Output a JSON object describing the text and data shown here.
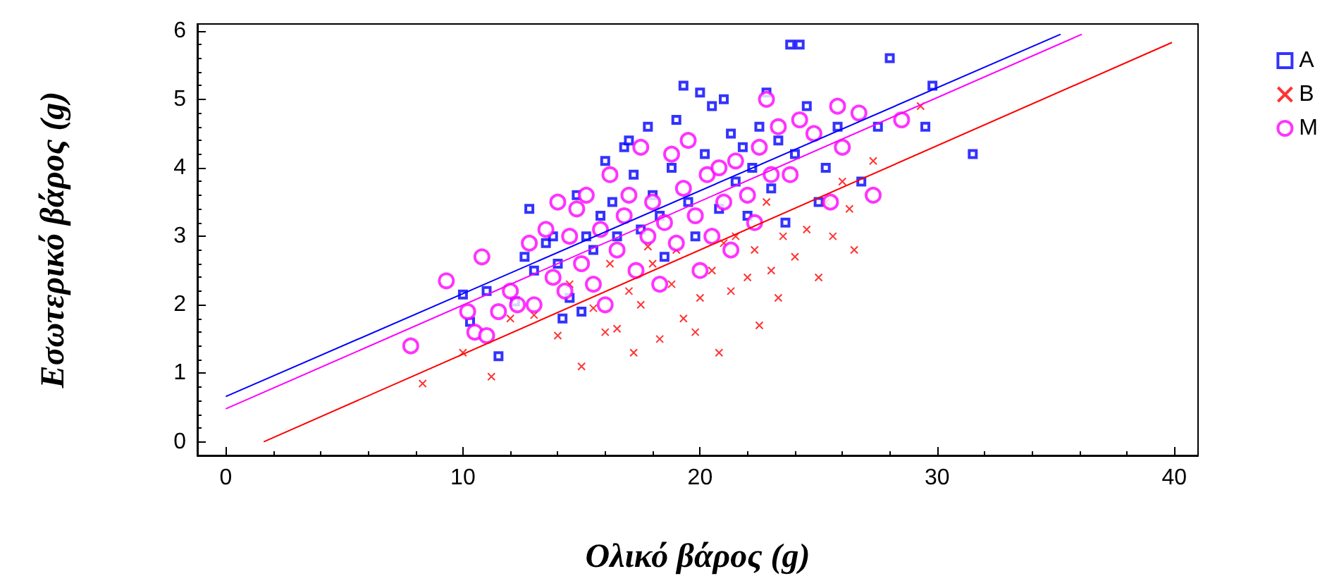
{
  "chart_data": {
    "type": "scatter",
    "xlabel": "Ολικό βάρος (g)",
    "ylabel": "Εσωτερικό βάρος (g)",
    "xlim": [
      -1.2,
      41
    ],
    "ylim": [
      -0.2,
      6.1
    ],
    "xticks": [
      0,
      10,
      20,
      30,
      40
    ],
    "yticks": [
      0,
      1,
      2,
      3,
      4,
      5,
      6
    ],
    "legend": "top right",
    "series": [
      {
        "name": "A",
        "color": "#0000ff",
        "marker": "square",
        "x": [
          10.0,
          11.0,
          10.3,
          11.5,
          12.2,
          12.6,
          12.8,
          13.0,
          13.5,
          13.8,
          14.0,
          14.2,
          14.5,
          14.8,
          15.0,
          15.2,
          15.5,
          15.8,
          16.0,
          16.3,
          16.5,
          16.8,
          17.0,
          17.2,
          17.5,
          17.8,
          18.0,
          18.3,
          18.5,
          18.8,
          19.0,
          19.3,
          19.5,
          19.8,
          20.0,
          20.2,
          20.5,
          20.8,
          21.0,
          21.3,
          21.5,
          21.8,
          22.0,
          22.2,
          22.5,
          22.8,
          23.0,
          23.3,
          23.6,
          23.8,
          24.2,
          24.0,
          24.5,
          25.0,
          25.3,
          25.8,
          26.8,
          27.5,
          28.0,
          29.5,
          29.8,
          31.5
        ],
        "values": [
          2.15,
          2.2,
          1.75,
          1.25,
          2.05,
          2.7,
          3.4,
          2.5,
          2.9,
          3.0,
          2.6,
          1.8,
          2.1,
          3.6,
          1.9,
          3.0,
          2.8,
          3.3,
          4.1,
          3.5,
          3.0,
          4.3,
          4.4,
          3.9,
          3.1,
          4.6,
          3.6,
          3.3,
          2.7,
          4.0,
          4.7,
          5.2,
          3.5,
          3.0,
          5.1,
          4.2,
          4.9,
          3.4,
          5.0,
          4.5,
          3.8,
          4.3,
          3.3,
          4.0,
          4.6,
          5.1,
          3.7,
          4.4,
          3.2,
          5.8,
          5.8,
          4.2,
          4.9,
          3.5,
          4.0,
          4.6,
          3.8,
          4.6,
          5.6,
          4.6,
          5.2,
          4.2
        ]
      },
      {
        "name": "B",
        "color": "#ff0000",
        "marker": "cross",
        "x": [
          8.3,
          10.0,
          11.2,
          12.0,
          13.0,
          14.0,
          14.5,
          15.0,
          15.5,
          16.0,
          16.5,
          17.0,
          17.2,
          17.5,
          18.0,
          18.3,
          18.8,
          19.0,
          19.3,
          19.8,
          20.0,
          20.5,
          20.8,
          21.0,
          21.3,
          21.5,
          22.0,
          22.3,
          22.5,
          22.8,
          23.0,
          23.3,
          23.5,
          24.0,
          24.5,
          25.0,
          25.3,
          25.6,
          26.0,
          26.3,
          26.5,
          27.3,
          29.3,
          17.8,
          16.2
        ],
        "values": [
          0.85,
          1.3,
          0.95,
          1.8,
          1.85,
          1.55,
          2.3,
          1.1,
          1.95,
          1.6,
          1.65,
          2.2,
          1.3,
          2.0,
          2.6,
          1.5,
          2.3,
          2.8,
          1.8,
          1.6,
          2.1,
          2.5,
          1.3,
          2.9,
          2.2,
          3.0,
          2.4,
          2.8,
          1.7,
          3.5,
          2.5,
          2.1,
          3.0,
          2.7,
          3.1,
          2.4,
          3.5,
          3.0,
          3.8,
          3.4,
          2.8,
          4.1,
          4.9,
          2.85,
          2.6
        ]
      },
      {
        "name": "M",
        "color": "#ff00ff",
        "marker": "circle",
        "x": [
          7.8,
          9.3,
          10.2,
          10.8,
          10.5,
          11.0,
          11.5,
          12.0,
          12.3,
          12.8,
          13.0,
          13.5,
          13.8,
          14.0,
          14.3,
          14.5,
          14.8,
          15.0,
          15.2,
          15.5,
          15.8,
          16.0,
          16.2,
          16.5,
          16.8,
          17.0,
          17.3,
          17.5,
          17.8,
          18.0,
          18.3,
          18.5,
          18.8,
          19.0,
          19.3,
          19.5,
          19.8,
          20.0,
          20.3,
          20.5,
          20.8,
          21.0,
          21.3,
          21.5,
          22.0,
          22.3,
          22.5,
          22.8,
          23.0,
          23.3,
          23.8,
          24.2,
          24.8,
          25.5,
          25.8,
          26.0,
          26.7,
          27.3,
          28.5
        ],
        "values": [
          1.4,
          2.35,
          1.9,
          2.7,
          1.6,
          1.55,
          1.9,
          2.2,
          2.0,
          2.9,
          2.0,
          3.1,
          2.4,
          3.5,
          2.2,
          3.0,
          3.4,
          2.6,
          3.6,
          2.3,
          3.1,
          2.0,
          3.9,
          2.8,
          3.3,
          3.6,
          2.5,
          4.3,
          3.0,
          3.5,
          2.3,
          3.2,
          4.2,
          2.9,
          3.7,
          4.4,
          3.3,
          2.5,
          3.9,
          3.0,
          4.0,
          3.5,
          2.8,
          4.1,
          3.6,
          3.2,
          4.3,
          5.0,
          3.9,
          4.6,
          3.9,
          4.7,
          4.5,
          3.5,
          4.9,
          4.3,
          4.8,
          3.6,
          4.7
        ]
      },
      {
        "type": "line",
        "color": "#0000ff",
        "marker": "none",
        "x": [
          0,
          35.2
        ],
        "values": [
          0.66,
          5.95
        ]
      },
      {
        "type": "line",
        "color": "#ff0000",
        "marker": "none",
        "x": [
          1.6,
          39.9
        ],
        "values": [
          0,
          5.83
        ]
      },
      {
        "type": "line",
        "color": "#ff00ff",
        "marker": "none",
        "x": [
          0,
          36.1
        ],
        "values": [
          0.48,
          5.95
        ]
      }
    ]
  }
}
